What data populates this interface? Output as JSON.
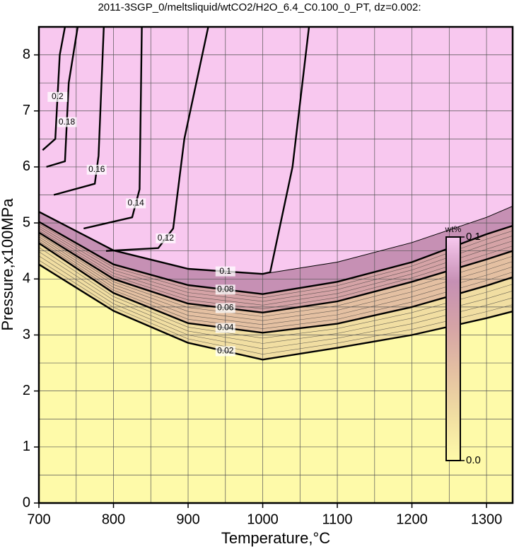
{
  "chart_data": {
    "type": "contour",
    "title": "2011-3SGP_0/meltsliquid/wtCO2/H2O_6.4_C0.100_0_PT, dz=0.002:",
    "x_label": "Temperature,°C",
    "y_label": "Pressure,x100MPa",
    "xlim": [
      700,
      1335
    ],
    "ylim": [
      0,
      8.5
    ],
    "xticks": [
      700,
      800,
      900,
      1000,
      1100,
      1200,
      1300
    ],
    "yticks": [
      0,
      1,
      2,
      3,
      4,
      5,
      6,
      7,
      8
    ],
    "xgrid": [
      750,
      850,
      950,
      1050,
      1150,
      1250
    ],
    "ygrid": [
      0.5,
      1.5,
      2.5,
      3.5,
      4.5,
      5.5,
      6.5,
      7.5
    ],
    "grid": true,
    "base_color": "#fefaa9",
    "contours": [
      {
        "level": 0.02,
        "color": "#f1dea2",
        "x": [
          700,
          800,
          900,
          1000,
          1100,
          1200,
          1300,
          1335
        ],
        "y": [
          4.26,
          3.43,
          2.86,
          2.56,
          2.77,
          3.0,
          3.3,
          3.42
        ]
      },
      {
        "level": 0.04,
        "color": "#e4c0a2",
        "x": [
          700,
          800,
          900,
          1000,
          1100,
          1200,
          1300,
          1335
        ],
        "y": [
          4.64,
          3.75,
          3.21,
          3.04,
          3.2,
          3.5,
          3.88,
          4.03
        ]
      },
      {
        "level": 0.06,
        "color": "#d5a3a6",
        "x": [
          700,
          800,
          900,
          1000,
          1100,
          1200,
          1300,
          1335
        ],
        "y": [
          4.83,
          4.0,
          3.56,
          3.4,
          3.6,
          3.95,
          4.35,
          4.5
        ]
      },
      {
        "level": 0.08,
        "color": "#c690b4",
        "x": [
          700,
          800,
          900,
          1000,
          1100,
          1200,
          1300,
          1335
        ],
        "y": [
          5.02,
          4.26,
          3.89,
          3.73,
          3.95,
          4.3,
          4.8,
          4.95
        ]
      },
      {
        "level": 0.1,
        "color": "#f8c8ef",
        "x": [
          700,
          800,
          900,
          1000,
          1010,
          1040,
          1062
        ],
        "y": [
          5.2,
          4.51,
          4.18,
          4.09,
          4.12,
          6.0,
          8.5
        ]
      },
      {
        "level": 0.1,
        "color": "#f8c8ef",
        "labeled": false,
        "x": [
          1000,
          1100,
          1200,
          1300,
          1335
        ],
        "y": [
          4.09,
          4.3,
          4.65,
          5.1,
          5.3
        ]
      },
      {
        "level": 0.12,
        "x": [
          790,
          860,
          880,
          895,
          927
        ],
        "y": [
          4.5,
          4.55,
          4.9,
          6.5,
          8.5
        ]
      },
      {
        "level": 0.14,
        "x": [
          760,
          825,
          835,
          838
        ],
        "y": [
          4.9,
          5.1,
          5.6,
          8.5
        ]
      },
      {
        "level": 0.16,
        "x": [
          720,
          775,
          780,
          787
        ],
        "y": [
          5.5,
          5.7,
          6.2,
          8.5
        ]
      },
      {
        "level": 0.18,
        "x": [
          710,
          735,
          740,
          752
        ],
        "y": [
          6.0,
          6.1,
          7.5,
          8.5
        ]
      },
      {
        "level": 0.2,
        "x": [
          705,
          722,
          728,
          735
        ],
        "y": [
          6.3,
          6.5,
          8.0,
          8.5
        ]
      }
    ],
    "colorbar": {
      "label": "wt%",
      "range": [
        0,
        0.1
      ],
      "ticks": [
        {
          "value": 0,
          "label": "0.0"
        },
        0.1
      ]
    }
  }
}
